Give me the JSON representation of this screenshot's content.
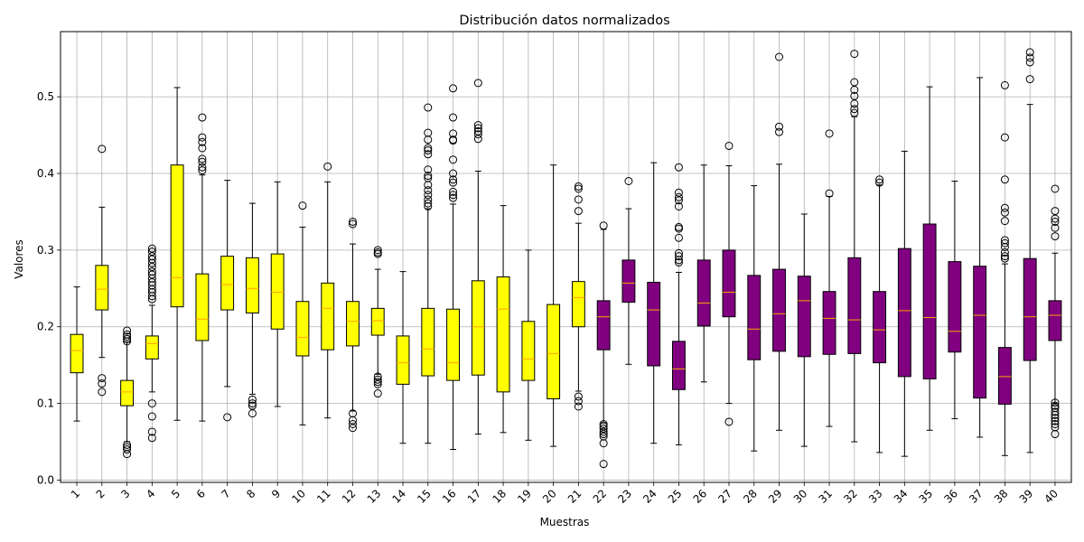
{
  "chart_data": {
    "type": "boxplot",
    "title": "Distribución datos normalizados",
    "xlabel": "Muestras",
    "ylabel": "Valores",
    "ylim": [
      -0.003,
      0.585
    ],
    "yticks": [
      0.0,
      0.1,
      0.2,
      0.3,
      0.4,
      0.5
    ],
    "ytick_labels": [
      "0.0",
      "0.1",
      "0.2",
      "0.3",
      "0.4",
      "0.5"
    ],
    "grid": true,
    "median_color": "#ffa500",
    "box_edge_color": "#000000",
    "group_colors": {
      "1-21": "#ffff00",
      "22-40": "#800080"
    },
    "categories": [
      "1",
      "2",
      "3",
      "4",
      "5",
      "6",
      "7",
      "8",
      "9",
      "10",
      "11",
      "12",
      "13",
      "14",
      "15",
      "16",
      "17",
      "18",
      "19",
      "20",
      "21",
      "22",
      "23",
      "24",
      "25",
      "26",
      "27",
      "28",
      "29",
      "30",
      "31",
      "32",
      "33",
      "34",
      "35",
      "36",
      "37",
      "38",
      "39",
      "40"
    ],
    "boxes": [
      {
        "label": "1",
        "whislo": 0.077,
        "q1": 0.14,
        "med": 0.169,
        "q3": 0.19,
        "whishi": 0.252,
        "fliers": [],
        "color": "#ffff00"
      },
      {
        "label": "2",
        "whislo": 0.16,
        "q1": 0.222,
        "med": 0.249,
        "q3": 0.28,
        "whishi": 0.356,
        "fliers": [
          0.432,
          0.133,
          0.126,
          0.115
        ],
        "color": "#ffff00"
      },
      {
        "label": "3",
        "whislo": 0.05,
        "q1": 0.097,
        "med": 0.115,
        "q3": 0.13,
        "whishi": 0.18,
        "fliers": [
          0.195,
          0.19,
          0.187,
          0.184,
          0.181,
          0.046,
          0.043,
          0.04,
          0.034
        ],
        "color": "#ffff00"
      },
      {
        "label": "4",
        "whislo": 0.115,
        "q1": 0.158,
        "med": 0.178,
        "q3": 0.188,
        "whishi": 0.228,
        "fliers": [
          0.302,
          0.298,
          0.292,
          0.288,
          0.283,
          0.278,
          0.272,
          0.268,
          0.263,
          0.258,
          0.254,
          0.249,
          0.245,
          0.24,
          0.236,
          0.1,
          0.083,
          0.063,
          0.055
        ],
        "color": "#ffff00"
      },
      {
        "label": "5",
        "whislo": 0.078,
        "q1": 0.226,
        "med": 0.264,
        "q3": 0.411,
        "whishi": 0.512,
        "fliers": [],
        "color": "#ffff00"
      },
      {
        "label": "6",
        "whislo": 0.077,
        "q1": 0.182,
        "med": 0.21,
        "q3": 0.269,
        "whishi": 0.398,
        "fliers": [
          0.473,
          0.447,
          0.441,
          0.433,
          0.419,
          0.415,
          0.408,
          0.404
        ],
        "color": "#ffff00"
      },
      {
        "label": "7",
        "whislo": 0.122,
        "q1": 0.222,
        "med": 0.255,
        "q3": 0.292,
        "whishi": 0.391,
        "fliers": [
          0.082
        ],
        "color": "#ffff00"
      },
      {
        "label": "8",
        "whislo": 0.112,
        "q1": 0.218,
        "med": 0.25,
        "q3": 0.29,
        "whishi": 0.361,
        "fliers": [
          0.105,
          0.1,
          0.097,
          0.087
        ],
        "color": "#ffff00"
      },
      {
        "label": "9",
        "whislo": 0.096,
        "q1": 0.197,
        "med": 0.245,
        "q3": 0.295,
        "whishi": 0.389,
        "fliers": [],
        "color": "#ffff00"
      },
      {
        "label": "10",
        "whislo": 0.072,
        "q1": 0.162,
        "med": 0.186,
        "q3": 0.233,
        "whishi": 0.33,
        "fliers": [
          0.358
        ],
        "color": "#ffff00"
      },
      {
        "label": "11",
        "whislo": 0.081,
        "q1": 0.17,
        "med": 0.224,
        "q3": 0.257,
        "whishi": 0.389,
        "fliers": [
          0.409
        ],
        "color": "#ffff00"
      },
      {
        "label": "12",
        "whislo": 0.09,
        "q1": 0.175,
        "med": 0.207,
        "q3": 0.233,
        "whishi": 0.308,
        "fliers": [
          0.337,
          0.334,
          0.087,
          0.078,
          0.073,
          0.068
        ],
        "color": "#ffff00"
      },
      {
        "label": "13",
        "whislo": 0.138,
        "q1": 0.189,
        "med": 0.208,
        "q3": 0.224,
        "whishi": 0.275,
        "fliers": [
          0.3,
          0.297,
          0.295,
          0.135,
          0.131,
          0.128,
          0.125,
          0.113
        ],
        "color": "#ffff00"
      },
      {
        "label": "14",
        "whislo": 0.048,
        "q1": 0.125,
        "med": 0.153,
        "q3": 0.188,
        "whishi": 0.272,
        "fliers": [],
        "color": "#ffff00"
      },
      {
        "label": "15",
        "whislo": 0.048,
        "q1": 0.136,
        "med": 0.171,
        "q3": 0.224,
        "whishi": 0.354,
        "fliers": [
          0.486,
          0.453,
          0.444,
          0.433,
          0.43,
          0.425,
          0.405,
          0.397,
          0.394,
          0.385,
          0.378,
          0.372,
          0.366,
          0.361,
          0.357
        ],
        "color": "#ffff00"
      },
      {
        "label": "16",
        "whislo": 0.04,
        "q1": 0.13,
        "med": 0.153,
        "q3": 0.223,
        "whishi": 0.36,
        "fliers": [
          0.511,
          0.473,
          0.452,
          0.444,
          0.443,
          0.418,
          0.4,
          0.392,
          0.388,
          0.376,
          0.372,
          0.368
        ],
        "color": "#ffff00"
      },
      {
        "label": "17",
        "whislo": 0.06,
        "q1": 0.137,
        "med": 0.2,
        "q3": 0.26,
        "whishi": 0.403,
        "fliers": [
          0.518,
          0.463,
          0.459,
          0.455,
          0.451,
          0.445
        ],
        "color": "#ffff00"
      },
      {
        "label": "18",
        "whislo": 0.062,
        "q1": 0.115,
        "med": 0.223,
        "q3": 0.265,
        "whishi": 0.358,
        "fliers": [],
        "color": "#ffff00"
      },
      {
        "label": "19",
        "whislo": 0.052,
        "q1": 0.13,
        "med": 0.158,
        "q3": 0.207,
        "whishi": 0.3,
        "fliers": [],
        "color": "#ffff00"
      },
      {
        "label": "20",
        "whislo": 0.044,
        "q1": 0.106,
        "med": 0.165,
        "q3": 0.229,
        "whishi": 0.411,
        "fliers": [],
        "color": "#ffff00"
      },
      {
        "label": "21",
        "whislo": 0.116,
        "q1": 0.2,
        "med": 0.238,
        "q3": 0.259,
        "whishi": 0.335,
        "fliers": [
          0.383,
          0.38,
          0.366,
          0.351,
          0.109,
          0.103,
          0.096
        ],
        "color": "#ffff00"
      },
      {
        "label": "22",
        "whislo": 0.075,
        "q1": 0.17,
        "med": 0.213,
        "q3": 0.234,
        "whishi": 0.327,
        "fliers": [
          0.332,
          0.073,
          0.07,
          0.067,
          0.063,
          0.06,
          0.057,
          0.048,
          0.021
        ],
        "color": "#800080"
      },
      {
        "label": "23",
        "whislo": 0.151,
        "q1": 0.232,
        "med": 0.257,
        "q3": 0.287,
        "whishi": 0.354,
        "fliers": [
          0.39
        ],
        "color": "#800080"
      },
      {
        "label": "24",
        "whislo": 0.048,
        "q1": 0.149,
        "med": 0.222,
        "q3": 0.258,
        "whishi": 0.414,
        "fliers": [],
        "color": "#800080"
      },
      {
        "label": "25",
        "whislo": 0.046,
        "q1": 0.118,
        "med": 0.145,
        "q3": 0.181,
        "whishi": 0.271,
        "fliers": [
          0.408,
          0.375,
          0.369,
          0.365,
          0.357,
          0.33,
          0.328,
          0.316,
          0.296,
          0.292,
          0.287,
          0.284
        ],
        "color": "#800080"
      },
      {
        "label": "26",
        "whislo": 0.128,
        "q1": 0.201,
        "med": 0.231,
        "q3": 0.287,
        "whishi": 0.411,
        "fliers": [],
        "color": "#800080"
      },
      {
        "label": "27",
        "whislo": 0.1,
        "q1": 0.213,
        "med": 0.245,
        "q3": 0.3,
        "whishi": 0.41,
        "fliers": [
          0.436,
          0.076
        ],
        "color": "#800080"
      },
      {
        "label": "28",
        "whislo": 0.038,
        "q1": 0.157,
        "med": 0.197,
        "q3": 0.267,
        "whishi": 0.384,
        "fliers": [],
        "color": "#800080"
      },
      {
        "label": "29",
        "whislo": 0.065,
        "q1": 0.168,
        "med": 0.217,
        "q3": 0.275,
        "whishi": 0.412,
        "fliers": [
          0.552,
          0.461,
          0.454
        ],
        "color": "#800080"
      },
      {
        "label": "30",
        "whislo": 0.044,
        "q1": 0.161,
        "med": 0.234,
        "q3": 0.266,
        "whishi": 0.347,
        "fliers": [],
        "color": "#800080"
      },
      {
        "label": "31",
        "whislo": 0.07,
        "q1": 0.164,
        "med": 0.211,
        "q3": 0.246,
        "whishi": 0.37,
        "fliers": [
          0.452,
          0.374
        ],
        "color": "#800080"
      },
      {
        "label": "32",
        "whislo": 0.05,
        "q1": 0.165,
        "med": 0.209,
        "q3": 0.29,
        "whishi": 0.474,
        "fliers": [
          0.556,
          0.519,
          0.509,
          0.501,
          0.491,
          0.484,
          0.479
        ],
        "color": "#800080"
      },
      {
        "label": "33",
        "whislo": 0.036,
        "q1": 0.153,
        "med": 0.196,
        "q3": 0.246,
        "whishi": 0.385,
        "fliers": [
          0.392,
          0.388
        ],
        "color": "#800080"
      },
      {
        "label": "34",
        "whislo": 0.031,
        "q1": 0.135,
        "med": 0.221,
        "q3": 0.302,
        "whishi": 0.429,
        "fliers": [],
        "color": "#800080"
      },
      {
        "label": "35",
        "whislo": 0.065,
        "q1": 0.132,
        "med": 0.212,
        "q3": 0.334,
        "whishi": 0.513,
        "fliers": [],
        "color": "#800080"
      },
      {
        "label": "36",
        "whislo": 0.08,
        "q1": 0.167,
        "med": 0.194,
        "q3": 0.285,
        "whishi": 0.39,
        "fliers": [],
        "color": "#800080"
      },
      {
        "label": "37",
        "whislo": 0.056,
        "q1": 0.107,
        "med": 0.215,
        "q3": 0.279,
        "whishi": 0.525,
        "fliers": [],
        "color": "#800080"
      },
      {
        "label": "38",
        "whislo": 0.032,
        "q1": 0.099,
        "med": 0.135,
        "q3": 0.173,
        "whishi": 0.282,
        "fliers": [
          0.515,
          0.447,
          0.392,
          0.355,
          0.349,
          0.338,
          0.313,
          0.309,
          0.304,
          0.297,
          0.292,
          0.289
        ],
        "color": "#800080"
      },
      {
        "label": "39",
        "whislo": 0.036,
        "q1": 0.156,
        "med": 0.213,
        "q3": 0.289,
        "whishi": 0.49,
        "fliers": [
          0.558,
          0.551,
          0.545,
          0.523
        ],
        "color": "#800080"
      },
      {
        "label": "40",
        "whislo": 0.1,
        "q1": 0.182,
        "med": 0.215,
        "q3": 0.234,
        "whishi": 0.296,
        "fliers": [
          0.38,
          0.351,
          0.341,
          0.337,
          0.329,
          0.318,
          0.101,
          0.097,
          0.094,
          0.089,
          0.085,
          0.081,
          0.077,
          0.073,
          0.069,
          0.06
        ],
        "color": "#800080"
      }
    ]
  }
}
